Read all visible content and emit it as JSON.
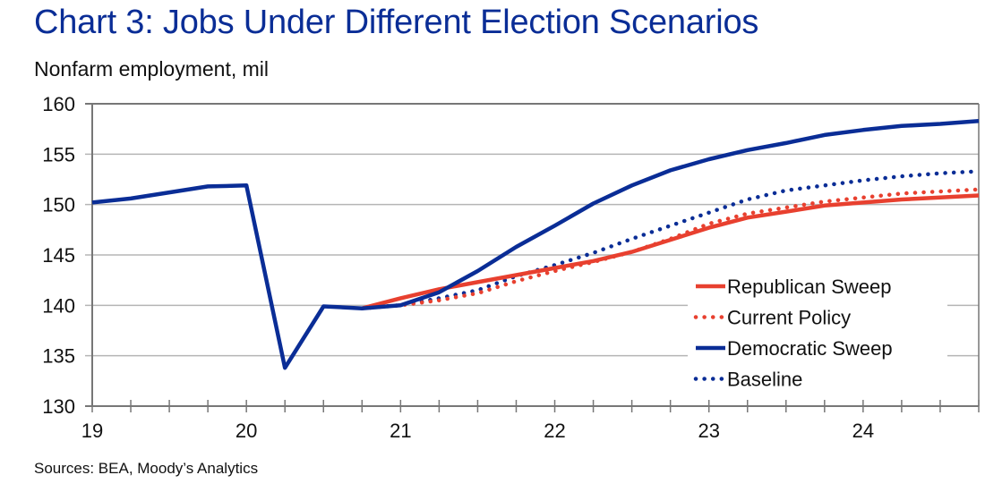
{
  "title": "Chart 3: Jobs Under Different Election Scenarios",
  "subtitle": "Nonfarm employment, mil",
  "source": "Sources: BEA, Moody’s Analytics",
  "colors": {
    "title": "#0a2d96",
    "republican": "#e8402f",
    "democratic": "#0a2d96"
  },
  "chart_data": {
    "type": "line",
    "title": "Chart 3: Jobs Under Different Election Scenarios",
    "ylabel": "Nonfarm employment, mil",
    "xlabel": "",
    "ylim": [
      130,
      160
    ],
    "xlim": [
      19,
      24.75
    ],
    "yticks": [
      130,
      135,
      140,
      145,
      150,
      155,
      160
    ],
    "xticks": [
      "19",
      "20",
      "21",
      "22",
      "23",
      "24"
    ],
    "xtick_values": [
      19,
      20,
      21,
      22,
      23,
      24
    ],
    "grid": "horizontal",
    "legend_position": "bottom-right",
    "x": [
      19.0,
      19.25,
      19.5,
      19.75,
      20.0,
      20.25,
      20.5,
      20.75,
      21.0,
      21.25,
      21.5,
      21.75,
      22.0,
      22.25,
      22.5,
      22.75,
      23.0,
      23.25,
      23.5,
      23.75,
      24.0,
      24.25,
      24.5,
      24.75
    ],
    "series": [
      {
        "name": "Republican Sweep",
        "style": "solid",
        "color": "#e8402f",
        "values": [
          null,
          null,
          null,
          null,
          null,
          null,
          null,
          139.7,
          140.7,
          141.6,
          142.3,
          143.0,
          143.7,
          144.4,
          145.3,
          146.5,
          147.7,
          148.7,
          149.3,
          149.9,
          150.2,
          150.5,
          150.7,
          150.9
        ]
      },
      {
        "name": "Current Policy",
        "style": "dotted",
        "color": "#e8402f",
        "values": [
          null,
          null,
          null,
          null,
          null,
          null,
          null,
          139.7,
          140.0,
          140.5,
          141.2,
          142.4,
          143.4,
          144.3,
          145.3,
          146.6,
          148.1,
          149.1,
          149.7,
          150.3,
          150.7,
          151.1,
          151.3,
          151.5
        ]
      },
      {
        "name": "Democratic Sweep",
        "style": "solid",
        "color": "#0a2d96",
        "values": [
          150.2,
          150.6,
          151.2,
          151.8,
          151.9,
          133.8,
          139.9,
          139.7,
          140.0,
          141.3,
          143.4,
          145.8,
          147.9,
          150.1,
          151.9,
          153.4,
          154.5,
          155.4,
          156.1,
          156.9,
          157.4,
          157.8,
          158.0,
          158.3
        ]
      },
      {
        "name": "Baseline",
        "style": "dotted",
        "color": "#0a2d96",
        "values": [
          null,
          null,
          null,
          null,
          null,
          null,
          null,
          139.7,
          140.0,
          140.7,
          141.5,
          142.9,
          144.0,
          145.2,
          146.6,
          147.9,
          149.2,
          150.5,
          151.4,
          151.9,
          152.4,
          152.8,
          153.1,
          153.3
        ]
      }
    ]
  }
}
